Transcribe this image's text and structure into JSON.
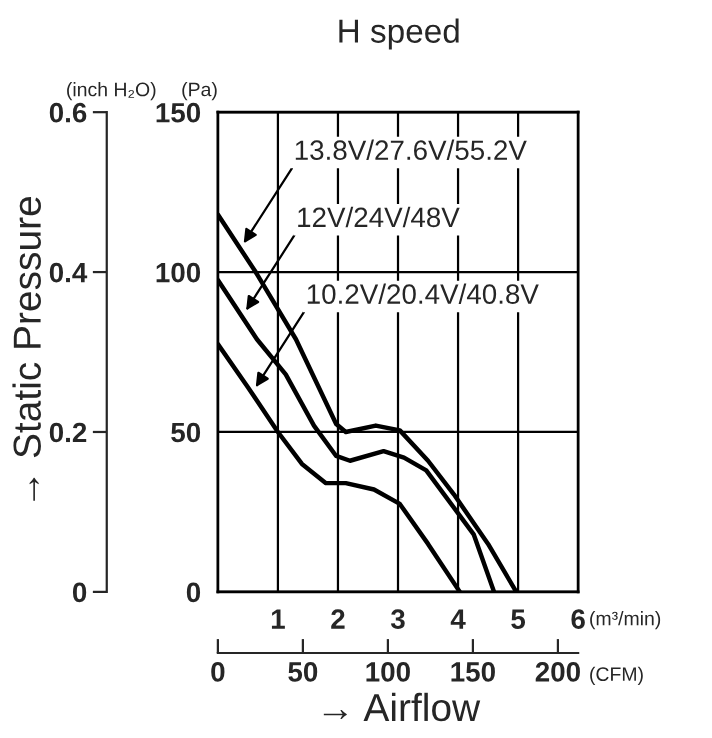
{
  "chart_data": {
    "type": "line",
    "title": "H speed",
    "xlabel": "→ Airflow",
    "y2label": "→ Static Pressure",
    "x2label": "(CFM)",
    "annotations": [
      {
        "text": "13.8V/27.6V/55.2V",
        "x": 0.43,
        "y": 109
      },
      {
        "text": "12V/24V/48V",
        "x": 0.47,
        "y": 88
      },
      {
        "text": "10.2V/20.4V/40.8V",
        "x": 0.63,
        "y": 64
      },
      "(m³/min)",
      "(Pa)",
      "(inch H₂O)"
    ],
    "series": [
      {
        "color": "#000000",
        "x": [
          0,
          0.63,
          1.3,
          1.97,
          2.13,
          2.63,
          3.03,
          3.5,
          3.93,
          4.5,
          4.97
        ],
        "values": [
          118,
          100,
          79,
          52.5,
          50,
          52,
          50.5,
          41,
          30.5,
          15,
          0
        ]
      },
      {
        "color": "#000000",
        "x": [
          0,
          0.65,
          1.13,
          1.6,
          1.97,
          2.2,
          2.76,
          3.1,
          3.47,
          4.26,
          4.6
        ],
        "values": [
          97.5,
          79,
          68,
          52,
          42.5,
          41,
          44,
          42,
          38,
          18,
          0
        ]
      },
      {
        "color": "#000000",
        "x": [
          0,
          0.5,
          1.0,
          1.4,
          1.8,
          2.13,
          2.6,
          3.03,
          3.5,
          4.03
        ],
        "values": [
          77.5,
          64,
          50,
          40,
          34,
          34,
          32,
          27.5,
          15,
          0
        ]
      }
    ],
    "xlim": [
      0,
      6
    ],
    "xticks": [
      1,
      2,
      3,
      4,
      5,
      6
    ],
    "ylim": [
      0,
      150
    ],
    "yticks": [
      0,
      50,
      100,
      150
    ],
    "y2lim": [
      0,
      0.6
    ],
    "y2ticks": [
      0,
      0.2,
      0.4,
      0.6
    ],
    "x2lim": [
      0,
      211.9
    ],
    "x2ticks": [
      0,
      50,
      100,
      150,
      200
    ],
    "grid": true,
    "marker": "none",
    "line_style": "solid",
    "legend": false
  }
}
